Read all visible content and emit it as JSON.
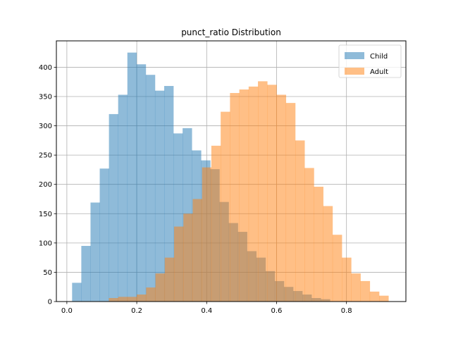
{
  "chart_data": {
    "type": "histogram",
    "title": "punct_ratio Distribution",
    "xlabel": "",
    "ylabel": "",
    "xlim": [
      -0.03,
      0.97
    ],
    "ylim": [
      0,
      445
    ],
    "xticks": [
      0.0,
      0.2,
      0.4,
      0.6,
      0.8
    ],
    "xtick_labels": [
      "0.0",
      "0.2",
      "0.4",
      "0.6",
      "0.8"
    ],
    "yticks": [
      0,
      50,
      100,
      150,
      200,
      250,
      300,
      350,
      400
    ],
    "ytick_labels": [
      "0",
      "50",
      "100",
      "150",
      "200",
      "250",
      "300",
      "350",
      "400"
    ],
    "grid": true,
    "legend_position": "top-right",
    "series": [
      {
        "name": "Child",
        "color": "#1f77b4",
        "alpha": 0.5,
        "bin_start": 0.015,
        "bin_width": 0.02635,
        "counts": [
          32,
          95,
          169,
          227,
          320,
          353,
          425,
          405,
          387,
          360,
          368,
          287,
          296,
          258,
          241,
          226,
          170,
          134,
          119,
          86,
          75,
          52,
          35,
          25,
          18,
          12,
          6,
          4
        ]
      },
      {
        "name": "Adult",
        "color": "#ff7f0e",
        "alpha": 0.5,
        "bin_start": 0.12,
        "bin_width": 0.02667,
        "counts": [
          6,
          8,
          8,
          12,
          24,
          48,
          75,
          128,
          150,
          175,
          229,
          266,
          324,
          356,
          362,
          367,
          376,
          370,
          353,
          339,
          275,
          228,
          196,
          163,
          114,
          75,
          48,
          35,
          17,
          10
        ]
      }
    ]
  }
}
